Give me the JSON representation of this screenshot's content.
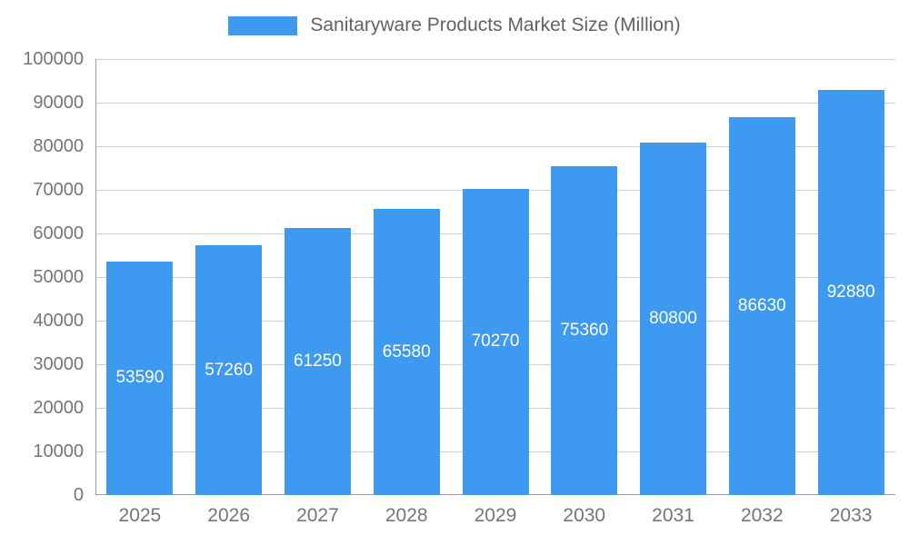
{
  "chart": {
    "legend_label": "Sanitaryware Products Market Size (Million)",
    "colors": {
      "bar": "#3d9af0",
      "bar_value_text": "#ffffff",
      "axis_text": "#757575",
      "legend_text": "#5f6368",
      "gridline": "#cccccc",
      "axis_line": "#9e9e9e",
      "background": "#ffffff"
    }
  },
  "chart_data": {
    "type": "bar",
    "title": "Sanitaryware Products Market Size (Million)",
    "categories": [
      "2025",
      "2026",
      "2027",
      "2028",
      "2029",
      "2030",
      "2031",
      "2032",
      "2033"
    ],
    "values": [
      53590,
      57260,
      61250,
      65580,
      70270,
      75360,
      80800,
      86630,
      92880
    ],
    "value_labels": [
      "53590",
      "57260",
      "61250",
      "65580",
      "70270",
      "75360",
      "80800",
      "86630",
      "92880"
    ],
    "xlabel": "",
    "ylabel": "",
    "ylim": [
      0,
      100000
    ],
    "ytick_interval": 10000,
    "ytick_labels": [
      "0",
      "10000",
      "20000",
      "30000",
      "40000",
      "50000",
      "60000",
      "70000",
      "80000",
      "90000",
      "100000"
    ],
    "grid": true,
    "legend_position": "top",
    "value_label_position": "inside-center"
  }
}
